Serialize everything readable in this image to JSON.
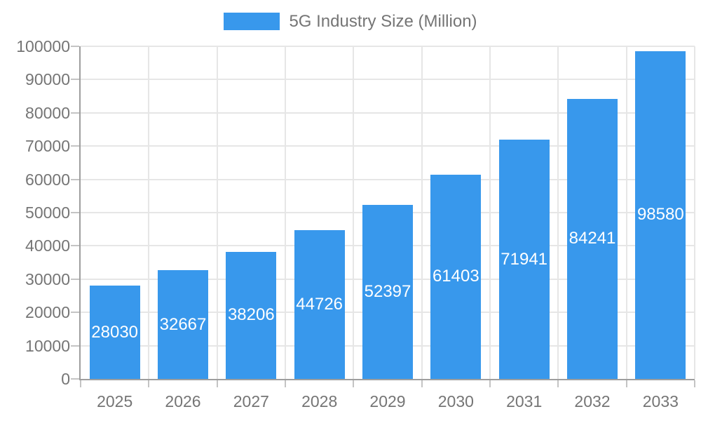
{
  "colors": {
    "bar": "#3898EC",
    "bar_label": "#ffffff",
    "axis_line": "#9e9e9e",
    "tick": "#c4c4c4",
    "gridline": "#e6e6e6",
    "axis_text": "#757575",
    "background": "#ffffff"
  },
  "chart_data": {
    "type": "bar",
    "legend_entries": [
      "5G Industry Size (Million)"
    ],
    "legend_position": "top-center",
    "categories": [
      "2025",
      "2026",
      "2027",
      "2028",
      "2029",
      "2030",
      "2031",
      "2032",
      "2033"
    ],
    "series": [
      {
        "name": "5G Industry Size (Million)",
        "values": [
          28030,
          32667,
          38206,
          44726,
          52397,
          61403,
          71941,
          84241,
          98580
        ]
      }
    ],
    "bar_value_labels": [
      "28030",
      "32667",
      "38206",
      "44726",
      "52397",
      "61403",
      "71941",
      "84241",
      "98580"
    ],
    "xlabel": "",
    "ylabel": "",
    "ylim": [
      0,
      100000
    ],
    "ytick_interval": 10000,
    "ytick_labels": [
      "0",
      "10000",
      "20000",
      "30000",
      "40000",
      "50000",
      "60000",
      "70000",
      "80000",
      "90000",
      "100000"
    ],
    "grid": true,
    "value_labels_inside_bars": true
  }
}
